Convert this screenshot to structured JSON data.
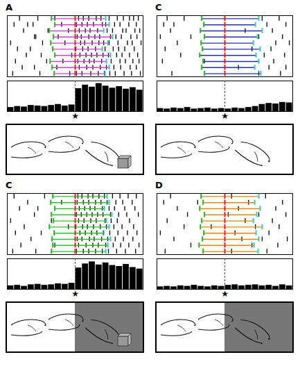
{
  "chart_data": [
    {
      "label": "A",
      "type": "raster",
      "color": "#cc44cc",
      "xlim": [
        -1,
        1
      ],
      "tick_labels": false,
      "event_colors": [
        "#22bb22",
        "#dd2222",
        "#33cccc"
      ],
      "trials": [
        {
          "spikes": [
            -0.82,
            -0.55,
            -0.3,
            0.05,
            0.12,
            0.2,
            0.31,
            0.38,
            0.5,
            0.62,
            0.71,
            0.8,
            0.86,
            0.93
          ],
          "events": [
            -0.35,
            0,
            0.45
          ]
        },
        {
          "spikes": [
            -0.9,
            -0.7,
            -0.62,
            -0.2,
            0.02,
            0.1,
            0.18,
            0.27,
            0.4,
            0.45,
            0.58,
            0.66,
            0.79,
            0.9
          ],
          "events": [
            -0.3,
            0,
            0.5
          ]
        },
        {
          "spikes": [
            -0.76,
            -0.4,
            -0.1,
            0.06,
            0.15,
            0.22,
            0.33,
            0.47,
            0.55,
            0.7,
            0.75,
            0.88,
            0.95
          ],
          "events": [
            -0.38,
            0,
            0.42
          ]
        },
        {
          "spikes": [
            -0.6,
            -0.58,
            -0.25,
            0.03,
            0.09,
            0.2,
            0.29,
            0.36,
            0.52,
            0.6,
            0.68,
            0.82,
            0.91
          ],
          "events": [
            -0.32,
            0,
            0.55
          ]
        },
        {
          "spikes": [
            -0.95,
            -0.48,
            -0.15,
            0.08,
            0.14,
            0.25,
            0.35,
            0.42,
            0.5,
            0.63,
            0.77,
            0.84,
            0.97
          ],
          "events": [
            -0.36,
            0,
            0.48
          ]
        },
        {
          "spikes": [
            -0.85,
            -0.66,
            -0.33,
            0.01,
            0.11,
            0.19,
            0.3,
            0.44,
            0.56,
            0.64,
            0.73,
            0.87
          ],
          "events": [
            -0.33,
            0,
            0.4
          ]
        },
        {
          "spikes": [
            -0.72,
            -0.5,
            -0.05,
            0.07,
            0.16,
            0.24,
            0.32,
            0.41,
            0.49,
            0.61,
            0.69,
            0.8,
            0.92
          ],
          "events": [
            -0.3,
            0,
            0.52
          ]
        },
        {
          "spikes": [
            -0.88,
            -0.42,
            -0.18,
            0.04,
            0.13,
            0.21,
            0.28,
            0.39,
            0.53,
            0.66,
            0.74,
            0.85,
            0.94
          ],
          "events": [
            -0.37,
            0,
            0.46
          ]
        },
        {
          "spikes": [
            -0.78,
            -0.6,
            -0.27,
            0.06,
            0.17,
            0.26,
            0.37,
            0.46,
            0.57,
            0.67,
            0.81,
            0.9
          ],
          "events": [
            -0.34,
            0,
            0.5
          ]
        },
        {
          "spikes": [
            -0.92,
            -0.52,
            -0.08,
            0.02,
            0.1,
            0.23,
            0.34,
            0.43,
            0.51,
            0.59,
            0.72,
            0.83,
            0.96
          ],
          "events": [
            -0.31,
            0,
            0.44
          ]
        }
      ],
      "histogram": {
        "type": "bar",
        "bins": [
          -1,
          -0.9,
          -0.8,
          -0.7,
          -0.6,
          -0.5,
          -0.4,
          -0.3,
          -0.2,
          -0.1,
          0,
          0.1,
          0.2,
          0.3,
          0.4,
          0.5,
          0.6,
          0.7,
          0.8,
          0.9,
          1
        ],
        "values": [
          8,
          10,
          9,
          12,
          11,
          10,
          12,
          14,
          11,
          13,
          45,
          52,
          48,
          55,
          50,
          46,
          49,
          44,
          47,
          42
        ],
        "ylim": [
          0,
          60
        ]
      },
      "annotations": [
        {
          "text": "★",
          "x": 0
        }
      ],
      "scene": {
        "object": true,
        "screen": false
      }
    },
    {
      "label": "C",
      "type": "raster",
      "color": "#2233aa",
      "xlim": [
        -1,
        1
      ],
      "tick_labels": false,
      "event_colors": [
        "#22bb22",
        "#dd2222",
        "#33cccc"
      ],
      "trials": [
        {
          "spikes": [
            -0.85,
            -0.6,
            0.55,
            0.8
          ],
          "events": [
            -0.34,
            0,
            0.5
          ]
        },
        {
          "spikes": [
            -0.9,
            -0.75,
            0.62,
            0.9
          ],
          "events": [
            -0.31,
            0,
            0.45
          ]
        },
        {
          "spikes": [
            -0.8,
            0.3,
            0.7
          ],
          "events": [
            -0.36,
            0,
            0.55
          ]
        },
        {
          "spikes": [
            -0.95,
            -0.5,
            0.5,
            0.85
          ],
          "events": [
            -0.3,
            0,
            0.48
          ]
        },
        {
          "spikes": [
            -0.7,
            0.75,
            0.95
          ],
          "events": [
            -0.35,
            0,
            0.42
          ]
        },
        {
          "spikes": [
            -0.88,
            0.4,
            0.68
          ],
          "events": [
            -0.33,
            0,
            0.52
          ]
        },
        {
          "spikes": [
            -0.65,
            0.58,
            0.88
          ],
          "events": [
            -0.37,
            0,
            0.46
          ]
        },
        {
          "spikes": [
            -0.92,
            -0.3,
            0.72
          ],
          "events": [
            -0.32,
            0,
            0.5
          ]
        },
        {
          "spikes": [
            0.2,
            0.65,
            0.9
          ],
          "events": [
            -0.34,
            0,
            0.44
          ]
        },
        {
          "spikes": [
            -0.78,
            0.5,
            0.82
          ],
          "events": [
            -0.3,
            0,
            0.53
          ]
        }
      ],
      "histogram": {
        "type": "bar",
        "bins": [
          -1,
          -0.9,
          -0.8,
          -0.7,
          -0.6,
          -0.5,
          -0.4,
          -0.3,
          -0.2,
          -0.1,
          0,
          0.1,
          0.2,
          0.3,
          0.4,
          0.5,
          0.6,
          0.7,
          0.8,
          0.9,
          1
        ],
        "values": [
          6,
          5,
          7,
          6,
          8,
          5,
          6,
          7,
          5,
          6,
          5,
          7,
          6,
          8,
          10,
          14,
          16,
          15,
          18,
          17
        ],
        "ylim": [
          0,
          60
        ]
      },
      "annotations": [
        {
          "text": "★",
          "x": 0
        }
      ],
      "scene": {
        "object": false,
        "screen": false
      }
    },
    {
      "label": "C",
      "type": "raster",
      "color": "#33bb33",
      "xlim": [
        -1,
        1
      ],
      "tick_labels": false,
      "event_colors": [
        "#22bb22",
        "#dd2222",
        "#33cccc"
      ],
      "trials": [
        {
          "spikes": [
            -0.9,
            -0.45,
            0.04,
            0.1,
            0.19,
            0.26,
            0.35,
            0.43,
            0.55,
            0.66,
            0.78,
            0.9
          ],
          "events": [
            -0.33,
            0,
            0.47
          ]
        },
        {
          "spikes": [
            -0.7,
            -0.2,
            0.03,
            0.12,
            0.2,
            0.3,
            0.38,
            0.47,
            0.6,
            0.7,
            0.84
          ],
          "events": [
            -0.36,
            0,
            0.5
          ]
        },
        {
          "spikes": [
            -0.82,
            -0.55,
            0.06,
            0.14,
            0.22,
            0.29,
            0.4,
            0.5,
            0.58,
            0.73,
            0.88
          ],
          "events": [
            -0.3,
            0,
            0.43
          ]
        },
        {
          "spikes": [
            -0.6,
            0.02,
            0.09,
            0.17,
            0.25,
            0.33,
            0.41,
            0.52,
            0.64,
            0.76,
            0.93
          ],
          "events": [
            -0.35,
            0,
            0.54
          ]
        },
        {
          "spikes": [
            -0.95,
            -0.35,
            0.05,
            0.13,
            0.23,
            0.31,
            0.44,
            0.53,
            0.62,
            0.8
          ],
          "events": [
            -0.32,
            0,
            0.46
          ]
        },
        {
          "spikes": [
            -0.75,
            -0.1,
            0.01,
            0.11,
            0.18,
            0.27,
            0.37,
            0.46,
            0.57,
            0.69,
            0.86
          ],
          "events": [
            -0.38,
            0,
            0.5
          ]
        },
        {
          "spikes": [
            -0.88,
            -0.5,
            0.07,
            0.15,
            0.24,
            0.32,
            0.42,
            0.51,
            0.63,
            0.77,
            0.91
          ],
          "events": [
            -0.31,
            0,
            0.41
          ]
        },
        {
          "spikes": [
            -0.65,
            0.03,
            0.1,
            0.21,
            0.28,
            0.39,
            0.48,
            0.59,
            0.71,
            0.85
          ],
          "events": [
            -0.34,
            0,
            0.52
          ]
        },
        {
          "spikes": [
            -0.8,
            -0.3,
            0.05,
            0.16,
            0.26,
            0.34,
            0.45,
            0.56,
            0.67,
            0.79,
            0.94
          ],
          "events": [
            -0.33,
            0,
            0.48
          ]
        },
        {
          "spikes": [
            -0.92,
            -0.58,
            0.02,
            0.12,
            0.2,
            0.3,
            0.4,
            0.49,
            0.61,
            0.74,
            0.89
          ],
          "events": [
            -0.35,
            0,
            0.45
          ]
        }
      ],
      "histogram": {
        "type": "bar",
        "bins": [
          -1,
          -0.9,
          -0.8,
          -0.7,
          -0.6,
          -0.5,
          -0.4,
          -0.3,
          -0.2,
          -0.1,
          0,
          0.1,
          0.2,
          0.3,
          0.4,
          0.5,
          0.6,
          0.7,
          0.8,
          0.9,
          1
        ],
        "values": [
          7,
          8,
          6,
          9,
          10,
          8,
          9,
          11,
          10,
          12,
          42,
          50,
          54,
          48,
          52,
          47,
          45,
          49,
          43,
          40
        ],
        "ylim": [
          0,
          60
        ]
      },
      "annotations": [
        {
          "text": "★",
          "x": 0
        }
      ],
      "scene": {
        "object": true,
        "screen": true
      }
    },
    {
      "label": "D",
      "type": "raster",
      "color": "#dd8800",
      "xlim": [
        -1,
        1
      ],
      "tick_labels": false,
      "event_colors": [
        "#22bb22",
        "#dd2222",
        "#33cccc"
      ],
      "trials": [
        {
          "spikes": [
            -0.8,
            0.1,
            0.6
          ],
          "events": [
            -0.35,
            0,
            0.5
          ]
        },
        {
          "spikes": [
            -0.9,
            -0.4,
            0.35,
            0.85
          ],
          "events": [
            -0.32,
            0,
            0.44
          ]
        },
        {
          "spikes": [
            -0.7,
            0.2,
            0.75
          ],
          "events": [
            -0.37,
            0,
            0.52
          ]
        },
        {
          "spikes": [
            -0.55,
            0.05,
            0.5,
            0.9
          ],
          "events": [
            -0.3,
            0,
            0.47
          ]
        },
        {
          "spikes": [
            -0.85,
            0.3,
            0.7
          ],
          "events": [
            -0.34,
            0,
            0.42
          ]
        },
        {
          "spikes": [
            -0.6,
            -0.2,
            0.45,
            0.8
          ],
          "events": [
            -0.36,
            0,
            0.55
          ]
        },
        {
          "spikes": [
            -0.95,
            0.15,
            0.65
          ],
          "events": [
            -0.31,
            0,
            0.46
          ]
        },
        {
          "spikes": [
            -0.75,
            0.25,
            0.55,
            0.92
          ],
          "events": [
            -0.33,
            0,
            0.5
          ]
        },
        {
          "spikes": [
            -0.5,
            0.4,
            0.78
          ],
          "events": [
            -0.38,
            0,
            0.43
          ]
        },
        {
          "spikes": [
            -0.88,
            0.1,
            0.62
          ],
          "events": [
            -0.32,
            0,
            0.49
          ]
        }
      ],
      "histogram": {
        "type": "bar",
        "bins": [
          -1,
          -0.9,
          -0.8,
          -0.7,
          -0.6,
          -0.5,
          -0.4,
          -0.3,
          -0.2,
          -0.1,
          0,
          0.1,
          0.2,
          0.3,
          0.4,
          0.5,
          0.6,
          0.7,
          0.8,
          0.9,
          1
        ],
        "values": [
          5,
          6,
          5,
          7,
          6,
          8,
          6,
          5,
          7,
          6,
          8,
          9,
          7,
          8,
          9,
          7,
          8,
          6,
          9,
          7
        ],
        "ylim": [
          0,
          60
        ]
      },
      "annotations": [
        {
          "text": "★",
          "x": 0
        }
      ],
      "scene": {
        "object": false,
        "screen": true
      }
    }
  ]
}
